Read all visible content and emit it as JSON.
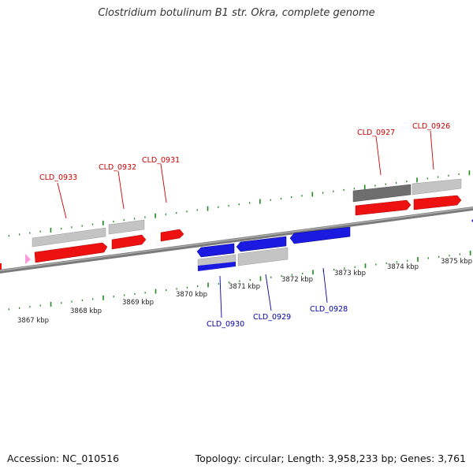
{
  "title": "Clostridium botulinum B1 str. Okra, complete genome",
  "footer": {
    "accession": "Accession: NC_010516",
    "topology": "Topology: circular; Length: 3,958,233 bp; Genes: 3,761"
  },
  "colors": {
    "forward_gene": "#ee1111",
    "reverse_gene": "#1a1ae0",
    "cds_light": "#c4c4c4",
    "cds_dark": "#6e6e6e",
    "backbone": "#8c8c8c",
    "tick": "#1f8a1f",
    "label_forward": "#cc0000",
    "label_reverse": "#0000aa",
    "marker_pink": "#ff99dd"
  },
  "kbp_labels": [
    "3867 kbp",
    "3868 kbp",
    "3869 kbp",
    "3870 kbp",
    "3871 kbp",
    "3872 kbp",
    "3873 kbp",
    "3874 kbp",
    "3875 kbp"
  ],
  "gene_labels_forward": [
    "CLD_0933",
    "CLD_0932",
    "CLD_0931",
    "CLD_0927",
    "CLD_0926"
  ],
  "gene_labels_reverse": [
    "CLD_0930",
    "CLD_0929",
    "CLD_0928"
  ]
}
